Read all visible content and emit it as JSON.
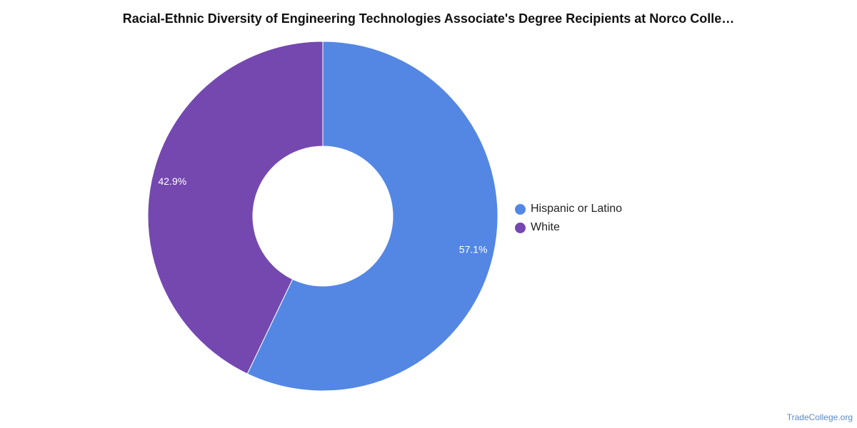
{
  "chart_data": {
    "type": "pie",
    "title": "Racial-Ethnic Diversity of Engineering Technologies Associate's Degree Recipients at Norco Colle…",
    "donut": true,
    "legend_position": "right",
    "slices": [
      {
        "name": "Hispanic or Latino",
        "value": 57.1,
        "label": "57.1%",
        "color": "#5387e3"
      },
      {
        "name": "White",
        "value": 42.9,
        "label": "42.9%",
        "color": "#7548b0"
      }
    ]
  },
  "watermark": "TradeCollege.org"
}
